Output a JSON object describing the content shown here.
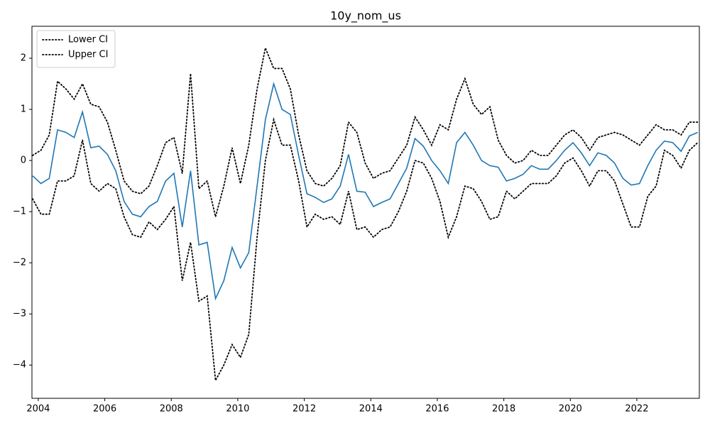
{
  "chart_data": {
    "type": "line",
    "title": "10y_nom_us",
    "x": [
      2003.83,
      2004.08,
      2004.33,
      2004.58,
      2004.83,
      2005.08,
      2005.33,
      2005.58,
      2005.83,
      2006.08,
      2006.33,
      2006.58,
      2006.83,
      2007.08,
      2007.33,
      2007.58,
      2007.83,
      2008.08,
      2008.33,
      2008.58,
      2008.83,
      2009.08,
      2009.33,
      2009.58,
      2009.83,
      2010.08,
      2010.33,
      2010.58,
      2010.83,
      2011.08,
      2011.33,
      2011.58,
      2011.83,
      2012.08,
      2012.33,
      2012.58,
      2012.83,
      2013.08,
      2013.33,
      2013.58,
      2013.83,
      2014.08,
      2014.33,
      2014.58,
      2014.83,
      2015.08,
      2015.33,
      2015.58,
      2015.83,
      2016.08,
      2016.33,
      2016.58,
      2016.83,
      2017.08,
      2017.33,
      2017.58,
      2017.83,
      2018.08,
      2018.33,
      2018.58,
      2018.83,
      2019.08,
      2019.33,
      2019.58,
      2019.83,
      2020.08,
      2020.33,
      2020.58,
      2020.83,
      2021.08,
      2021.33,
      2021.58,
      2021.83,
      2022.08,
      2022.33,
      2022.58,
      2022.83,
      2023.08,
      2023.33,
      2023.58,
      2023.83
    ],
    "series": [
      {
        "color": "#1f77b4",
        "linestyle": "solid",
        "values": [
          -0.3,
          -0.45,
          -0.35,
          0.6,
          0.55,
          0.45,
          0.95,
          0.25,
          0.28,
          0.12,
          -0.2,
          -0.8,
          -1.05,
          -1.1,
          -0.9,
          -0.8,
          -0.4,
          -0.25,
          -1.3,
          -0.2,
          -1.65,
          -1.6,
          -2.7,
          -2.35,
          -1.7,
          -2.1,
          -1.8,
          -0.5,
          0.8,
          1.5,
          1.0,
          0.9,
          0.1,
          -0.65,
          -0.72,
          -0.82,
          -0.75,
          -0.5,
          0.12,
          -0.6,
          -0.62,
          -0.9,
          -0.82,
          -0.75,
          -0.45,
          -0.15,
          0.43,
          0.28,
          0.0,
          -0.2,
          -0.45,
          0.35,
          0.55,
          0.3,
          0.0,
          -0.1,
          -0.13,
          -0.4,
          -0.35,
          -0.27,
          -0.1,
          -0.17,
          -0.17,
          0.0,
          0.2,
          0.35,
          0.15,
          -0.1,
          0.15,
          0.1,
          -0.05,
          -0.35,
          -0.48,
          -0.45,
          -0.1,
          0.2,
          0.38,
          0.35,
          0.18,
          0.48,
          0.55
        ]
      },
      {
        "name": "Lower CI",
        "color": "#000000",
        "linestyle": "dotted",
        "values": [
          -0.75,
          -1.05,
          -1.05,
          -0.4,
          -0.4,
          -0.3,
          0.4,
          -0.45,
          -0.6,
          -0.45,
          -0.55,
          -1.1,
          -1.45,
          -1.5,
          -1.2,
          -1.35,
          -1.15,
          -0.9,
          -2.35,
          -1.6,
          -2.75,
          -2.65,
          -4.3,
          -4.0,
          -3.6,
          -3.85,
          -3.4,
          -1.5,
          0.0,
          0.8,
          0.3,
          0.3,
          -0.4,
          -1.3,
          -1.05,
          -1.15,
          -1.1,
          -1.25,
          -0.6,
          -1.35,
          -1.3,
          -1.5,
          -1.35,
          -1.3,
          -1.0,
          -0.6,
          0.0,
          -0.05,
          -0.35,
          -0.8,
          -1.5,
          -1.1,
          -0.5,
          -0.55,
          -0.8,
          -1.15,
          -1.1,
          -0.6,
          -0.75,
          -0.6,
          -0.45,
          -0.45,
          -0.45,
          -0.3,
          -0.05,
          0.05,
          -0.2,
          -0.5,
          -0.2,
          -0.2,
          -0.4,
          -0.85,
          -1.3,
          -1.3,
          -0.7,
          -0.5,
          0.2,
          0.1,
          -0.15,
          0.2,
          0.35
        ]
      },
      {
        "name": "Upper CI",
        "color": "#000000",
        "linestyle": "dotted",
        "values": [
          0.1,
          0.2,
          0.5,
          1.55,
          1.4,
          1.2,
          1.5,
          1.1,
          1.05,
          0.75,
          0.2,
          -0.4,
          -0.6,
          -0.65,
          -0.5,
          -0.1,
          0.35,
          0.45,
          -0.25,
          1.7,
          -0.55,
          -0.4,
          -1.1,
          -0.5,
          0.25,
          -0.45,
          0.3,
          1.4,
          2.2,
          1.8,
          1.8,
          1.4,
          0.5,
          -0.2,
          -0.45,
          -0.5,
          -0.35,
          -0.1,
          0.75,
          0.55,
          -0.05,
          -0.35,
          -0.25,
          -0.2,
          0.05,
          0.3,
          0.85,
          0.6,
          0.3,
          0.7,
          0.6,
          1.2,
          1.6,
          1.1,
          0.9,
          1.05,
          0.4,
          0.1,
          -0.05,
          0.0,
          0.2,
          0.1,
          0.1,
          0.3,
          0.5,
          0.6,
          0.45,
          0.2,
          0.45,
          0.5,
          0.55,
          0.5,
          0.4,
          0.3,
          0.5,
          0.7,
          0.6,
          0.6,
          0.5,
          0.75,
          0.75
        ]
      }
    ],
    "xlim": [
      2003.81,
      2023.88
    ],
    "xticks": [
      2004,
      2006,
      2008,
      2010,
      2012,
      2014,
      2016,
      2018,
      2020,
      2022
    ],
    "ylim": [
      -4.65,
      2.625
    ],
    "yticks": [
      {
        "value": -4,
        "label": "−4"
      },
      {
        "value": -3,
        "label": "−3"
      },
      {
        "value": -2,
        "label": "−2"
      },
      {
        "value": -1,
        "label": "−1"
      },
      0,
      1,
      2
    ],
    "grid": false,
    "legend": "upper left"
  }
}
